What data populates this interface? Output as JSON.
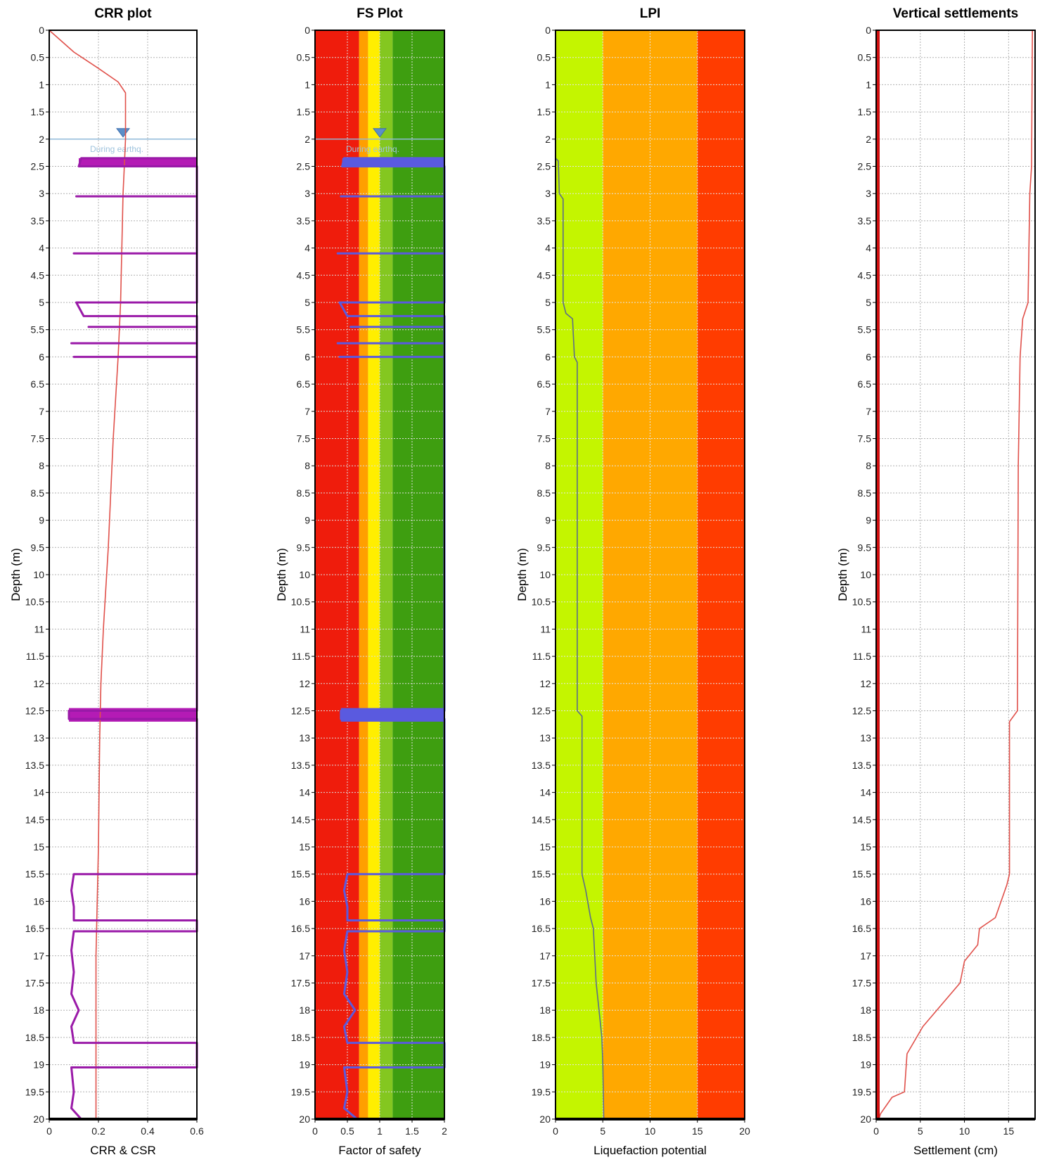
{
  "chart_data": [
    {
      "type": "line",
      "title": "CRR plot",
      "xlabel": "CRR & CSR",
      "ylabel": "Depth (m)",
      "xlim": [
        0,
        0.6
      ],
      "ylim": [
        0,
        20
      ],
      "x_ticks": [
        0,
        0.2,
        0.4,
        0.6
      ],
      "grid": true,
      "water_table": {
        "depth": 2,
        "label": "During earthq."
      },
      "series": [
        {
          "name": "",
          "color": "#e0504a",
          "points": [
            [
              0,
              0
            ],
            [
              0.1,
              0.4
            ],
            [
              0.2,
              0.7
            ],
            [
              0.28,
              0.95
            ],
            [
              0.31,
              1.15
            ],
            [
              0.31,
              2.0
            ],
            [
              0.305,
              2.5
            ],
            [
              0.3,
              3.0
            ],
            [
              0.29,
              5.0
            ],
            [
              0.28,
              6.0
            ],
            [
              0.26,
              7.5
            ],
            [
              0.25,
              8.5
            ],
            [
              0.24,
              9.5
            ],
            [
              0.22,
              11.0
            ],
            [
              0.21,
              12.0
            ],
            [
              0.205,
              13.0
            ],
            [
              0.2,
              15.0
            ],
            [
              0.19,
              17.0
            ],
            [
              0.19,
              20.0
            ]
          ]
        },
        {
          "name": "",
          "color": "#9a1aa8",
          "points": [
            [
              0.6,
              2.35
            ],
            [
              0.13,
              2.35
            ],
            [
              0.12,
              2.5
            ],
            [
              0.6,
              2.5
            ],
            [
              0.6,
              3.05
            ],
            [
              0.11,
              3.05
            ],
            [
              0.6,
              3.05
            ],
            [
              0.6,
              4.1
            ],
            [
              0.1,
              4.1
            ],
            [
              0.6,
              4.1
            ],
            [
              0.6,
              5.0
            ],
            [
              0.11,
              5.0
            ],
            [
              0.14,
              5.25
            ],
            [
              0.6,
              5.25
            ],
            [
              0.6,
              5.45
            ],
            [
              0.16,
              5.45
            ],
            [
              0.6,
              5.45
            ],
            [
              0.6,
              5.75
            ],
            [
              0.09,
              5.75
            ],
            [
              0.6,
              5.75
            ],
            [
              0.6,
              6.0
            ],
            [
              0.1,
              6.0
            ],
            [
              0.6,
              6.0
            ],
            [
              0.6,
              12.5
            ],
            [
              0.08,
              12.5
            ],
            [
              0.08,
              12.65
            ],
            [
              0.6,
              12.65
            ],
            [
              0.6,
              15.5
            ],
            [
              0.1,
              15.5
            ],
            [
              0.09,
              15.8
            ],
            [
              0.1,
              16.1
            ],
            [
              0.1,
              16.35
            ],
            [
              0.6,
              16.35
            ],
            [
              0.6,
              16.55
            ],
            [
              0.1,
              16.55
            ],
            [
              0.09,
              16.9
            ],
            [
              0.1,
              17.3
            ],
            [
              0.09,
              17.7
            ],
            [
              0.12,
              18.0
            ],
            [
              0.09,
              18.3
            ],
            [
              0.1,
              18.6
            ],
            [
              0.6,
              18.6
            ],
            [
              0.6,
              19.05
            ],
            [
              0.09,
              19.05
            ],
            [
              0.1,
              19.5
            ],
            [
              0.09,
              19.8
            ],
            [
              0.13,
              20.0
            ]
          ]
        }
      ],
      "bands": [
        {
          "from": 2.35,
          "to": 2.5,
          "x0": 0.12,
          "x1": 0.6,
          "color": "#b41bb5"
        },
        {
          "from": 12.45,
          "to": 12.7,
          "x0": 0.08,
          "x1": 0.6,
          "color": "#b41bb5"
        }
      ]
    },
    {
      "type": "line",
      "title": "FS Plot",
      "xlabel": "Factor of safety",
      "ylabel": "Depth (m)",
      "xlim": [
        0,
        2
      ],
      "ylim": [
        0,
        20
      ],
      "x_ticks": [
        0,
        0.5,
        1,
        1.5,
        2
      ],
      "grid": true,
      "water_table": {
        "depth": 2,
        "label": "During earthq."
      },
      "zones": [
        {
          "from": 0,
          "to": 0.68,
          "color": "#ef1c0c"
        },
        {
          "from": 0.68,
          "to": 0.82,
          "color": "#ff9f00"
        },
        {
          "from": 0.82,
          "to": 1.0,
          "color": "#ffee00"
        },
        {
          "from": 1.0,
          "to": 1.2,
          "color": "#84c720"
        },
        {
          "from": 1.2,
          "to": 2.0,
          "color": "#3e9e10"
        }
      ],
      "series": [
        {
          "name": "",
          "color": "#5a5adf",
          "points": [
            [
              2,
              2.35
            ],
            [
              0.45,
              2.35
            ],
            [
              0.42,
              2.5
            ],
            [
              2,
              2.5
            ],
            [
              2,
              3.05
            ],
            [
              0.4,
              3.05
            ],
            [
              2,
              3.05
            ],
            [
              2,
              4.1
            ],
            [
              0.35,
              4.1
            ],
            [
              2,
              4.1
            ],
            [
              2,
              5.0
            ],
            [
              0.38,
              5.0
            ],
            [
              0.5,
              5.25
            ],
            [
              2,
              5.25
            ],
            [
              2,
              5.45
            ],
            [
              0.55,
              5.45
            ],
            [
              2,
              5.45
            ],
            [
              2,
              5.75
            ],
            [
              0.35,
              5.75
            ],
            [
              2,
              5.75
            ],
            [
              2,
              6.0
            ],
            [
              0.38,
              6.0
            ],
            [
              2,
              6.0
            ],
            [
              2,
              12.5
            ],
            [
              0.4,
              12.5
            ],
            [
              0.4,
              12.65
            ],
            [
              2,
              12.65
            ],
            [
              2,
              15.5
            ],
            [
              0.5,
              15.5
            ],
            [
              0.45,
              15.8
            ],
            [
              0.5,
              16.1
            ],
            [
              0.5,
              16.35
            ],
            [
              2,
              16.35
            ],
            [
              2,
              16.55
            ],
            [
              0.5,
              16.55
            ],
            [
              0.45,
              16.9
            ],
            [
              0.5,
              17.3
            ],
            [
              0.45,
              17.7
            ],
            [
              0.62,
              18.0
            ],
            [
              0.45,
              18.3
            ],
            [
              0.5,
              18.6
            ],
            [
              2,
              18.6
            ],
            [
              2,
              19.05
            ],
            [
              0.45,
              19.05
            ],
            [
              0.5,
              19.5
            ],
            [
              0.45,
              19.8
            ],
            [
              0.65,
              20.0
            ]
          ]
        }
      ],
      "bands": [
        {
          "from": 2.35,
          "to": 2.5,
          "x0": 0.42,
          "x1": 2,
          "color": "#5a5adf"
        },
        {
          "from": 12.45,
          "to": 12.7,
          "x0": 0.4,
          "x1": 2,
          "color": "#5a5adf"
        }
      ]
    },
    {
      "type": "line",
      "title": "LPI",
      "xlabel": "Liquefaction potential",
      "ylabel": "Depth (m)",
      "xlim": [
        0,
        20
      ],
      "ylim": [
        0,
        20
      ],
      "x_ticks": [
        0,
        5,
        10,
        15,
        20
      ],
      "grid": true,
      "zones": [
        {
          "from": 0,
          "to": 5,
          "color": "#c4f500"
        },
        {
          "from": 5,
          "to": 15,
          "color": "#ffa800"
        },
        {
          "from": 15,
          "to": 20,
          "color": "#ff3c00"
        }
      ],
      "series": [
        {
          "name": "",
          "color": "#5c6d8a",
          "points": [
            [
              0,
              2.35
            ],
            [
              0.3,
              2.4
            ],
            [
              0.4,
              3.0
            ],
            [
              0.8,
              3.1
            ],
            [
              0.8,
              5.0
            ],
            [
              1.1,
              5.2
            ],
            [
              1.8,
              5.3
            ],
            [
              2.0,
              6.0
            ],
            [
              2.3,
              6.1
            ],
            [
              2.3,
              12.5
            ],
            [
              2.8,
              12.6
            ],
            [
              2.8,
              15.5
            ],
            [
              3.2,
              15.8
            ],
            [
              3.7,
              16.3
            ],
            [
              4.0,
              16.5
            ],
            [
              4.3,
              17.5
            ],
            [
              4.6,
              18.0
            ],
            [
              4.9,
              18.5
            ],
            [
              5.0,
              19.0
            ],
            [
              5.1,
              20.0
            ]
          ]
        }
      ]
    },
    {
      "type": "line",
      "title": "Vertical settlements",
      "xlabel": "Settlement (cm)",
      "ylabel": "Depth (m)",
      "xlim": [
        0,
        18
      ],
      "ylim": [
        0,
        20
      ],
      "x_ticks": [
        0,
        5,
        10,
        15
      ],
      "grid": true,
      "series": [
        {
          "name": "",
          "color": "#e0504a",
          "points": [
            [
              17.7,
              0
            ],
            [
              17.6,
              2.5
            ],
            [
              17.4,
              3.0
            ],
            [
              17.2,
              5.0
            ],
            [
              16.6,
              5.3
            ],
            [
              16.3,
              6.0
            ],
            [
              16.1,
              8.0
            ],
            [
              16.0,
              12.5
            ],
            [
              15.1,
              12.7
            ],
            [
              15.1,
              15.5
            ],
            [
              14.8,
              15.7
            ],
            [
              13.5,
              16.3
            ],
            [
              11.7,
              16.5
            ],
            [
              11.5,
              16.8
            ],
            [
              10.0,
              17.1
            ],
            [
              9.5,
              17.5
            ],
            [
              5.3,
              18.3
            ],
            [
              3.5,
              18.8
            ],
            [
              3.2,
              19.5
            ],
            [
              1.8,
              19.6
            ],
            [
              0.5,
              19.9
            ],
            [
              0.3,
              20.0
            ]
          ]
        },
        {
          "name": "",
          "color": "#d01010",
          "points": [
            [
              0.2,
              0
            ],
            [
              0.2,
              20
            ]
          ]
        }
      ]
    }
  ]
}
